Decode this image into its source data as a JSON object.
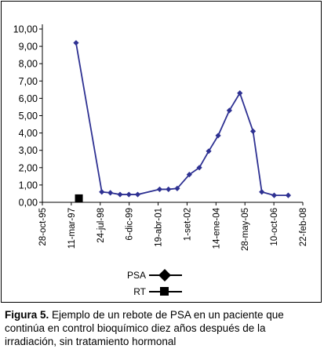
{
  "chart_data": {
    "type": "line",
    "title": "",
    "xlabel": "",
    "ylabel": "",
    "ylim": [
      0,
      10
    ],
    "y_ticks": [
      "0,00",
      "1,00",
      "2,00",
      "3,00",
      "4,00",
      "5,00",
      "6,00",
      "7,00",
      "8,00",
      "9,00",
      "10,00"
    ],
    "x_tick_labels": [
      "28-oct-95",
      "11-mar-97",
      "24-jul-98",
      "6-dic-99",
      "19-abr-01",
      "1-set-02",
      "14-ene-04",
      "28-may-05",
      "10-oct-06",
      "22-feb-08"
    ],
    "x_range": [
      "1995-10-28",
      "2008-02-22"
    ],
    "grid": false,
    "legend": "bottom",
    "series": [
      {
        "name": "PSA",
        "marker": "diamond",
        "color": "#2e3192",
        "points": [
          {
            "x": "1997-06-01",
            "y": 9.2
          },
          {
            "x": "1998-08-20",
            "y": 0.6
          },
          {
            "x": "1999-01-15",
            "y": 0.55
          },
          {
            "x": "1999-07-01",
            "y": 0.45
          },
          {
            "x": "1999-12-01",
            "y": 0.45
          },
          {
            "x": "2000-05-01",
            "y": 0.45
          },
          {
            "x": "2001-05-15",
            "y": 0.75
          },
          {
            "x": "2001-10-15",
            "y": 0.75
          },
          {
            "x": "2002-03-15",
            "y": 0.8
          },
          {
            "x": "2002-10-10",
            "y": 1.6
          },
          {
            "x": "2003-04-01",
            "y": 2.0
          },
          {
            "x": "2003-09-10",
            "y": 2.95
          },
          {
            "x": "2004-02-20",
            "y": 3.85
          },
          {
            "x": "2004-09-01",
            "y": 5.3
          },
          {
            "x": "2005-03-01",
            "y": 6.3
          },
          {
            "x": "2005-10-15",
            "y": 4.1
          },
          {
            "x": "2006-03-15",
            "y": 0.6
          },
          {
            "x": "2006-10-15",
            "y": 0.4
          },
          {
            "x": "2007-06-15",
            "y": 0.4
          }
        ]
      },
      {
        "name": "RT",
        "marker": "square",
        "color": "#000000",
        "points": [
          {
            "x": "1997-07-20",
            "y": 0.05
          }
        ]
      }
    ]
  },
  "legend": {
    "psa_label": "PSA",
    "rt_label": "RT"
  },
  "caption": {
    "figure_label": "Figura 5.",
    "text": " Ejemplo de un rebote de PSA en un paciente que continúa en control bioquímico diez años después de la irradiación, sin tratamiento hormonal"
  }
}
